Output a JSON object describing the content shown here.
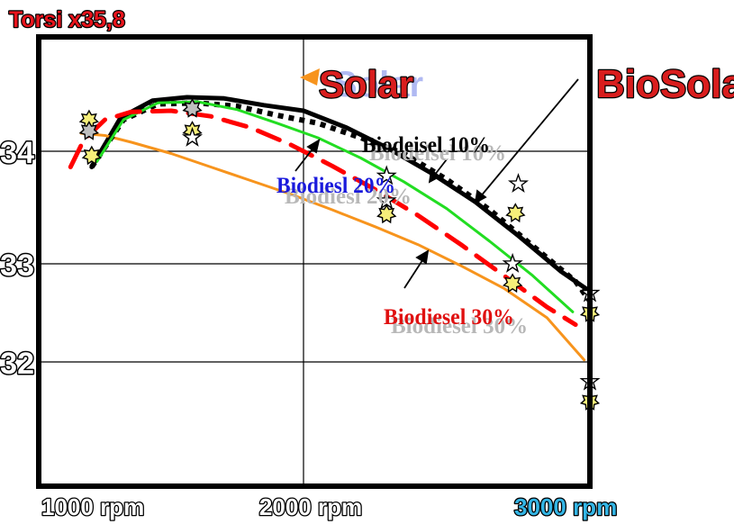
{
  "chart_data": {
    "type": "line",
    "title": "Torsi x35,8",
    "x_ticks": [
      {
        "label": "1000 rpm",
        "value": 1000,
        "color": "#ffffff"
      },
      {
        "label": "2000 rpm",
        "value": 2000,
        "color": "#ffffff"
      },
      {
        "label": "3000 rpm",
        "value": 3000,
        "color": "#33b5e5"
      }
    ],
    "y_ticks": [
      {
        "label": "34",
        "value": 34
      },
      {
        "label": "33",
        "value": 33
      },
      {
        "label": "32",
        "value": 32
      }
    ],
    "xlim": [
      1000,
      3000
    ],
    "ylim": [
      31.0,
      34.75
    ],
    "grid": true,
    "series": [
      {
        "name": "BioSolar",
        "color": "#000000",
        "dash": "none",
        "width": 5,
        "x": [
          1200,
          1310,
          1430,
          1560,
          1700,
          1850,
          2000,
          2150,
          2300,
          2450,
          2600,
          2750,
          2900,
          3000
        ],
        "y": [
          33.86,
          34.3,
          34.45,
          34.48,
          34.47,
          34.41,
          34.36,
          34.21,
          34.02,
          33.8,
          33.55,
          33.25,
          32.92,
          32.72
        ]
      },
      {
        "name": "Solar",
        "color": "#f7941d",
        "dash": "none",
        "width": 3,
        "x": [
          1160,
          1250,
          1350,
          1500,
          1650,
          1800,
          1950,
          2100,
          2250,
          2400,
          2550,
          2700,
          2850,
          2980
        ],
        "y": [
          34.16,
          34.14,
          34.08,
          33.98,
          33.86,
          33.74,
          33.62,
          33.48,
          33.33,
          33.17,
          32.98,
          32.75,
          32.45,
          32.02
        ]
      },
      {
        "name": "Biodiesel 10%",
        "color": "#000000",
        "dash": "dotted",
        "width": 6,
        "x": [
          1200,
          1320,
          1450,
          1600,
          1750,
          1900,
          2050,
          2200,
          2350,
          2500,
          2650,
          2800,
          2950,
          3000
        ],
        "y": [
          33.86,
          34.28,
          34.42,
          34.43,
          34.4,
          34.32,
          34.25,
          34.12,
          33.98,
          33.75,
          33.48,
          33.16,
          32.82,
          32.62
        ]
      },
      {
        "name": "Biodiesel 20%",
        "color": "#22dd22",
        "dash": "none",
        "width": 3,
        "x": [
          1220,
          1320,
          1450,
          1600,
          1750,
          1900,
          2050,
          2200,
          2350,
          2500,
          2650,
          2800,
          2940
        ],
        "y": [
          33.91,
          34.28,
          34.43,
          34.44,
          34.37,
          34.25,
          34.12,
          33.94,
          33.73,
          33.49,
          33.2,
          32.88,
          32.51
        ]
      },
      {
        "name": "Biodiesel 30%",
        "color": "#ff0000",
        "dash": "long",
        "width": 5,
        "x": [
          1120,
          1170,
          1250,
          1350,
          1500,
          1650,
          1800,
          1950,
          2100,
          2250,
          2400,
          2550,
          2700,
          2850,
          2950
        ],
        "y": [
          33.86,
          34.1,
          34.28,
          34.35,
          34.36,
          34.31,
          34.21,
          34.06,
          33.87,
          33.66,
          33.43,
          33.17,
          32.88,
          32.56,
          32.38
        ]
      }
    ],
    "markers": [
      {
        "kind": "star-burst",
        "x": 1190,
        "y": 34.28
      },
      {
        "kind": "star-burst",
        "x": 1190,
        "y": 34.18
      },
      {
        "kind": "star-burst",
        "x": 1200,
        "y": 33.96
      },
      {
        "kind": "star-burst",
        "x": 1580,
        "y": 34.38
      },
      {
        "kind": "star-burst",
        "x": 1580,
        "y": 34.18
      },
      {
        "kind": "star",
        "x": 1580,
        "y": 34.12
      },
      {
        "kind": "star",
        "x": 2290,
        "y": 33.78
      },
      {
        "kind": "star",
        "x": 2290,
        "y": 33.56
      },
      {
        "kind": "star-burst",
        "x": 2290,
        "y": 33.44
      },
      {
        "kind": "star",
        "x": 2750,
        "y": 33.71
      },
      {
        "kind": "star-burst",
        "x": 2740,
        "y": 33.45
      },
      {
        "kind": "star",
        "x": 2730,
        "y": 33.0
      },
      {
        "kind": "star-burst",
        "x": 2730,
        "y": 32.8
      },
      {
        "kind": "star",
        "x": 3000,
        "y": 32.7
      },
      {
        "kind": "star-burst",
        "x": 3000,
        "y": 32.5
      },
      {
        "kind": "star",
        "x": 3000,
        "y": 31.8
      },
      {
        "kind": "star-burst",
        "x": 3000,
        "y": 31.6
      }
    ],
    "annotations": {
      "solar": "Solar",
      "solar_shadow": "Solar",
      "biosolar": "BioSolar",
      "bio10": "Biodeisel 10%",
      "bio10_shadow": "Biodeisel 10%",
      "bio20": "Biodiesl 20%",
      "bio20_shadow": "Biodiesl 20%",
      "bio30": "Biodiesel 30%",
      "bio30_shadow": "Biodiesel 30%"
    }
  }
}
